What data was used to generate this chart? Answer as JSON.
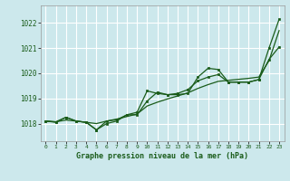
{
  "title": "Graphe pression niveau de la mer (hPa)",
  "bg_color": "#cce8ec",
  "grid_color": "#ffffff",
  "line_color": "#1a5c1a",
  "xlim": [
    -0.5,
    23.5
  ],
  "ylim": [
    1017.3,
    1022.7
  ],
  "yticks": [
    1018,
    1019,
    1020,
    1021,
    1022
  ],
  "xticks": [
    0,
    1,
    2,
    3,
    4,
    5,
    6,
    7,
    8,
    9,
    10,
    11,
    12,
    13,
    14,
    15,
    16,
    17,
    18,
    19,
    20,
    21,
    22,
    23
  ],
  "series_smooth": [
    1018.1,
    1018.07,
    1018.14,
    1018.1,
    1018.05,
    1018.0,
    1018.1,
    1018.18,
    1018.28,
    1018.38,
    1018.7,
    1018.85,
    1018.98,
    1019.1,
    1019.22,
    1019.4,
    1019.55,
    1019.68,
    1019.72,
    1019.76,
    1019.8,
    1019.85,
    1020.5,
    1021.7
  ],
  "series_upper": [
    1018.1,
    1018.05,
    1018.25,
    1018.1,
    1018.05,
    1017.75,
    1018.1,
    1018.15,
    1018.35,
    1018.45,
    1019.3,
    1019.2,
    1019.15,
    1019.15,
    1019.2,
    1019.85,
    1020.2,
    1020.15,
    1019.65,
    1019.65,
    1019.65,
    1019.75,
    1021.0,
    1022.15
  ],
  "series_lower": [
    1018.1,
    1018.07,
    1018.25,
    1018.1,
    1018.05,
    1017.75,
    1018.0,
    1018.1,
    1018.35,
    1018.35,
    1018.9,
    1019.25,
    1019.15,
    1019.2,
    1019.35,
    1019.7,
    1019.85,
    1019.95,
    1019.65,
    1019.65,
    1019.65,
    1019.75,
    1020.55,
    1021.05
  ]
}
